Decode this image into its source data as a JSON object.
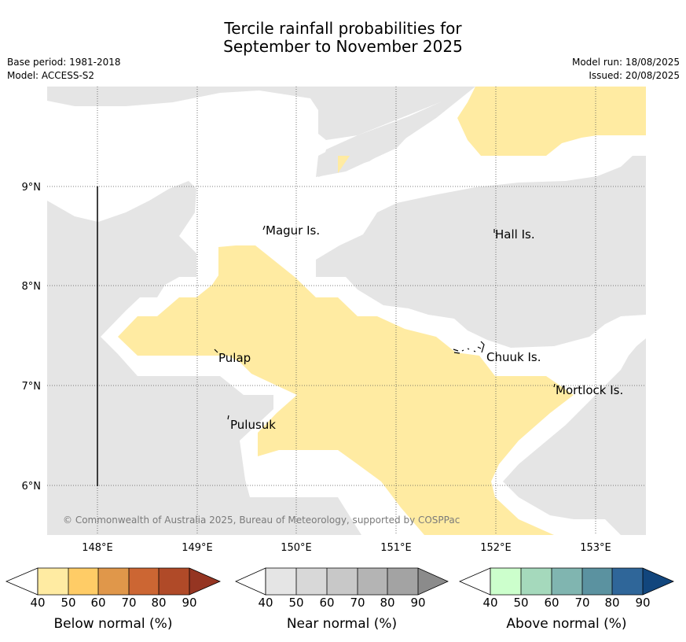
{
  "title": {
    "line1": "Tercile rainfall probabilities for",
    "line2": "September to November 2025"
  },
  "meta": {
    "base_period": "Base period: 1981-2018",
    "model": "Model: ACCESS-S2",
    "model_run": "Model run: 18/08/2025",
    "issued": "Issued: 20/08/2025"
  },
  "map": {
    "latitude_labels": [
      "9°N",
      "8°N",
      "7°N",
      "6°N"
    ],
    "longitude_labels": [
      "148°E",
      "149°E",
      "150°E",
      "151°E",
      "152°E",
      "153°E"
    ],
    "places": [
      "Magur Is.",
      "Hall Is.",
      "Pulap",
      "Chuuk Is.",
      "Mortlock Is.",
      "Pulusuk"
    ],
    "copyright": "© Commonwealth of Australia 2025, Bureau of Meteorology, supported by COSPPac",
    "colors": {
      "near_normal_fill": "#e5e5e5",
      "below_normal_fill": "#ffeba2",
      "background": "#ffffff"
    }
  },
  "legend": {
    "ticks": [
      "40",
      "50",
      "60",
      "70",
      "80",
      "90"
    ],
    "below": {
      "label": "Below normal (%)",
      "colors": [
        "#ffeba2",
        "#ffcc66",
        "#e0974a",
        "#cc6633",
        "#b04a28",
        "#953522"
      ]
    },
    "near": {
      "label": "Near normal (%)",
      "colors": [
        "#e5e5e5",
        "#d8d8d8",
        "#c8c8c8",
        "#b4b4b4",
        "#a3a3a3",
        "#8b8b8b"
      ]
    },
    "above": {
      "label": "Above normal (%)",
      "colors": [
        "#ccffcc",
        "#a5d9bc",
        "#80b5b0",
        "#5b92a0",
        "#2f6699",
        "#12467d"
      ]
    }
  }
}
